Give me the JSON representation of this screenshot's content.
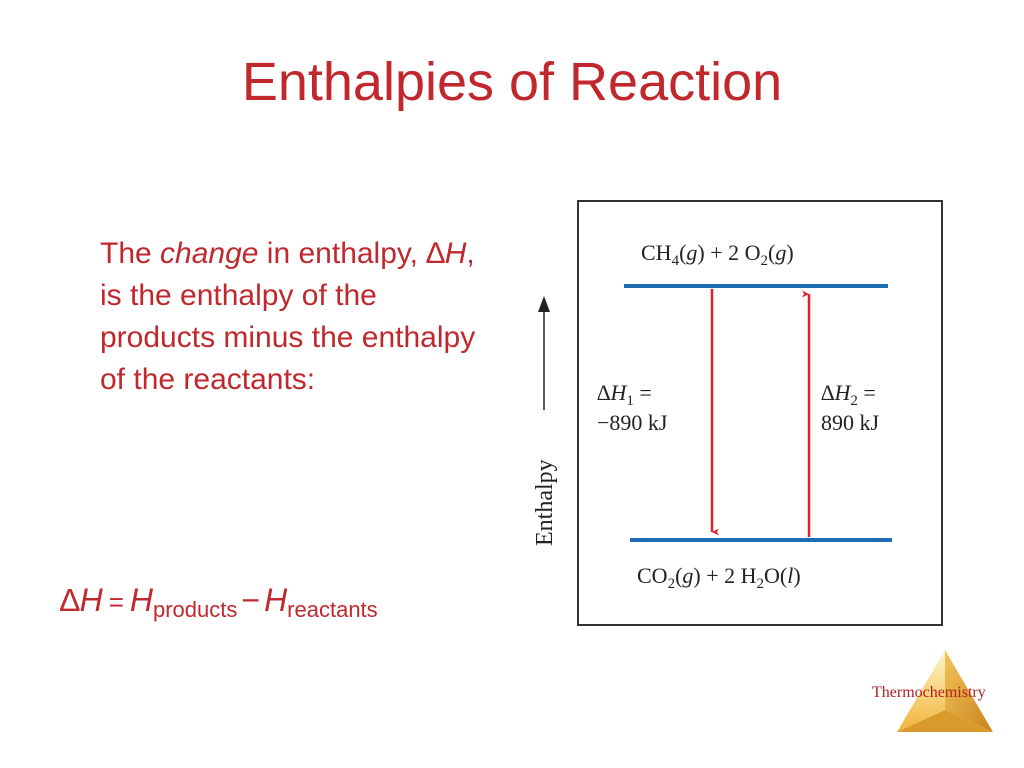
{
  "slide": {
    "title": "Enthalpies of Reaction",
    "body": {
      "part1": "The ",
      "emphasis": "change",
      "part2": " in enthalpy, ",
      "delta_symbol": "∆",
      "H_symbol": "H",
      "part3": ", is the enthalpy of the products minus the enthalpy of the reactants:"
    },
    "equation": {
      "delta": "∆",
      "H": "H",
      "equals": "=",
      "H_products": "H",
      "products_sub": "products",
      "minus": "−",
      "H_reactants": "H",
      "reactants_sub": "reactants"
    },
    "footer_label": "Thermochemistry"
  },
  "diagram": {
    "axis_label": "Enthalpy",
    "upper_state": {
      "CH": "CH",
      "sub4": "4",
      "g1": "g",
      "plus": " + 2 O",
      "sub2": "2",
      "g2": "g"
    },
    "lower_state": {
      "CO": "CO",
      "sub2": "2",
      "g": "g",
      "plus": " + 2 H",
      "subh": "2",
      "O": "O(",
      "l": "l",
      "close": ")"
    },
    "dh1": {
      "delta": "∆",
      "H": "H",
      "sub": "1",
      "eq": " =",
      "value": "−890 kJ"
    },
    "dh2": {
      "delta": "∆",
      "H": "H",
      "sub": "2",
      "eq": " =",
      "value": "890 kJ"
    },
    "colors": {
      "level_line": "#1f6db5",
      "arrow": "#e0202d",
      "frame": "#333333"
    }
  }
}
